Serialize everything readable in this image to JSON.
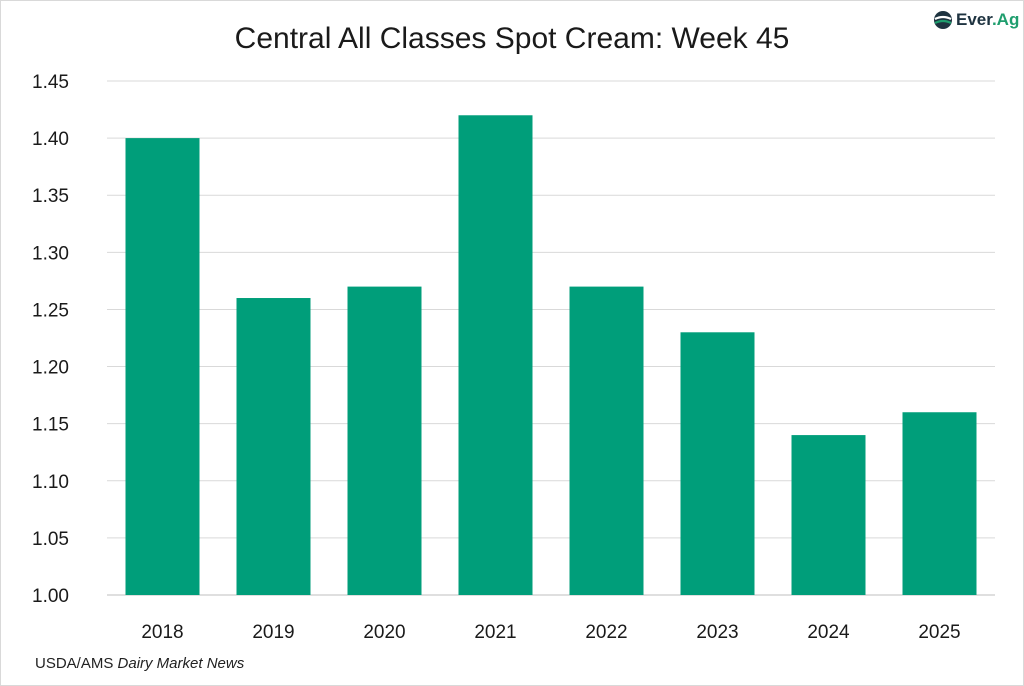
{
  "chart_data": {
    "type": "bar",
    "title": "Central All Classes Spot Cream: Week 45",
    "categories": [
      "2018",
      "2019",
      "2020",
      "2021",
      "2022",
      "2023",
      "2024",
      "2025"
    ],
    "values": [
      1.4,
      1.26,
      1.27,
      1.42,
      1.27,
      1.23,
      1.14,
      1.16
    ],
    "xlabel": "",
    "ylabel": "",
    "ylim": [
      1.0,
      1.45
    ],
    "yticks": [
      "1.00",
      "1.05",
      "1.10",
      "1.15",
      "1.20",
      "1.25",
      "1.30",
      "1.35",
      "1.40",
      "1.45"
    ],
    "grid": true,
    "bar_color": "#009e7a"
  },
  "logo": {
    "brand": "Ever",
    "suffix": ".Ag"
  },
  "source": {
    "prefix": "USDA/AMS ",
    "italic": "Dairy Market News"
  }
}
